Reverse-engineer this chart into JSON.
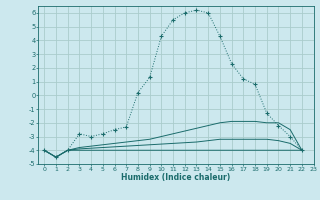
{
  "xlabel": "Humidex (Indice chaleur)",
  "bg_color": "#cce8ee",
  "grid_color": "#aacccc",
  "line_color": "#1a6b6b",
  "xlim": [
    -0.5,
    23
  ],
  "ylim": [
    -5,
    6.5
  ],
  "yticks": [
    -5,
    -4,
    -3,
    -2,
    -1,
    0,
    1,
    2,
    3,
    4,
    5,
    6
  ],
  "xticks": [
    0,
    1,
    2,
    3,
    4,
    5,
    6,
    7,
    8,
    9,
    10,
    11,
    12,
    13,
    14,
    15,
    16,
    17,
    18,
    19,
    20,
    21,
    22,
    23
  ],
  "curves": [
    {
      "x": [
        0,
        1,
        2,
        3,
        4,
        5,
        6,
        7,
        8,
        9,
        10,
        11,
        12,
        13,
        14,
        15,
        16,
        17,
        18,
        19,
        20,
        21,
        22
      ],
      "y": [
        -4.0,
        -4.5,
        -4.0,
        -2.8,
        -3.0,
        -2.8,
        -2.5,
        -2.3,
        0.2,
        1.3,
        4.3,
        5.5,
        6.0,
        6.2,
        6.0,
        4.3,
        2.3,
        1.2,
        0.8,
        -1.3,
        -2.2,
        -3.0,
        -4.0
      ],
      "marker": "+"
    },
    {
      "x": [
        0,
        1,
        2,
        3,
        4,
        5,
        6,
        7,
        8,
        9,
        10,
        11,
        12,
        13,
        14,
        15,
        16,
        17,
        18,
        19,
        20,
        21,
        22
      ],
      "y": [
        -4.0,
        -4.5,
        -4.0,
        -3.8,
        -3.7,
        -3.6,
        -3.5,
        -3.4,
        -3.3,
        -3.2,
        -3.0,
        -2.8,
        -2.6,
        -2.4,
        -2.2,
        -2.0,
        -1.9,
        -1.9,
        -1.9,
        -2.0,
        -2.0,
        -2.5,
        -4.0
      ],
      "marker": null
    },
    {
      "x": [
        0,
        1,
        2,
        3,
        4,
        5,
        6,
        7,
        8,
        9,
        10,
        11,
        12,
        13,
        14,
        15,
        16,
        17,
        18,
        19,
        20,
        21,
        22
      ],
      "y": [
        -4.0,
        -4.5,
        -4.0,
        -3.9,
        -3.85,
        -3.8,
        -3.75,
        -3.7,
        -3.65,
        -3.6,
        -3.55,
        -3.5,
        -3.45,
        -3.4,
        -3.3,
        -3.2,
        -3.2,
        -3.2,
        -3.2,
        -3.2,
        -3.3,
        -3.5,
        -4.0
      ],
      "marker": null
    },
    {
      "x": [
        0,
        1,
        2,
        3,
        4,
        5,
        6,
        7,
        8,
        9,
        10,
        11,
        12,
        13,
        14,
        15,
        16,
        17,
        18,
        19,
        20,
        21,
        22
      ],
      "y": [
        -4.0,
        -4.5,
        -4.0,
        -4.0,
        -4.0,
        -4.0,
        -4.0,
        -4.0,
        -4.0,
        -4.0,
        -4.0,
        -4.0,
        -4.0,
        -4.0,
        -4.0,
        -4.0,
        -4.0,
        -4.0,
        -4.0,
        -4.0,
        -4.0,
        -4.0,
        -4.0
      ],
      "marker": null
    }
  ]
}
